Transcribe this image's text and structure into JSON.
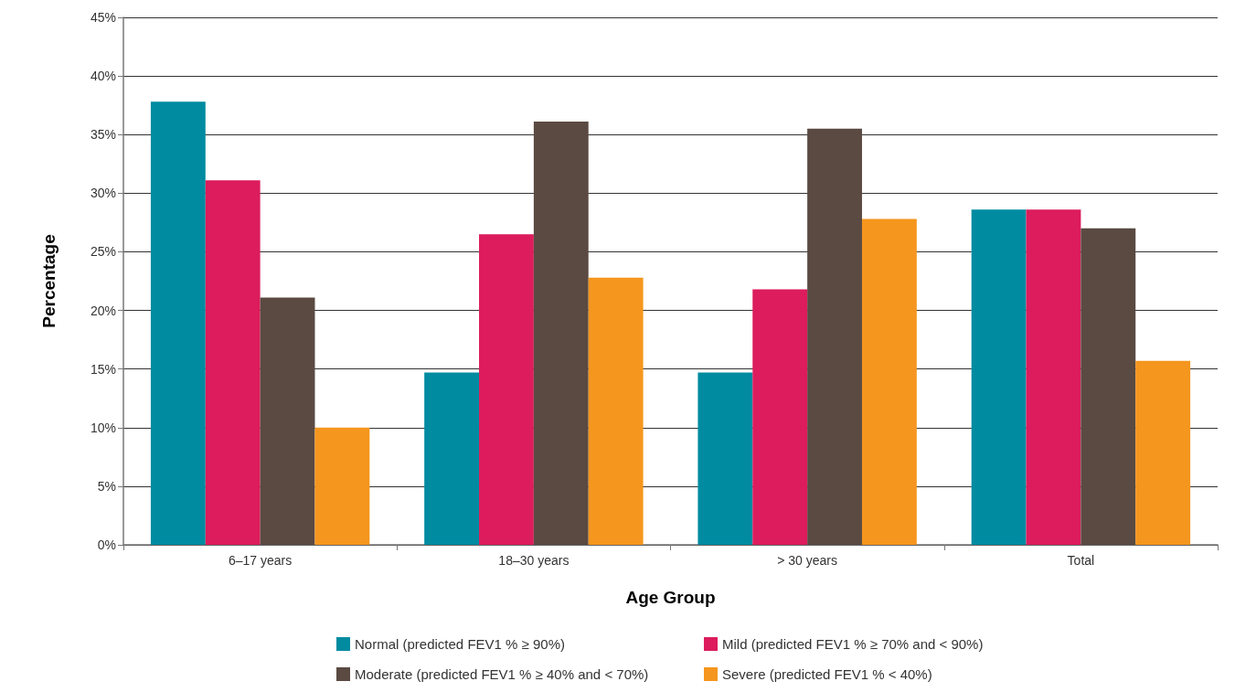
{
  "chart_data": {
    "type": "bar",
    "xlabel": "Age Group",
    "ylabel": "Percentage",
    "categories": [
      "6–17 years",
      "18–30 years",
      "> 30 years",
      "Total"
    ],
    "series": [
      {
        "name": "Normal (predicted FEV1 % ≥ 90%)",
        "color": "#008ba0",
        "values": [
          37.8,
          14.7,
          14.7,
          28.6
        ]
      },
      {
        "name": "Mild (predicted FEV1 % ≥ 70% and < 90%)",
        "color": "#dc1c5c",
        "values": [
          31.1,
          26.5,
          21.8,
          28.6
        ]
      },
      {
        "name": "Moderate (predicted FEV1 % ≥ 40% and < 70%)",
        "color": "#5a4a42",
        "values": [
          21.1,
          36.1,
          35.5,
          27.0
        ]
      },
      {
        "name": "Severe (predicted FEV1 % < 40%)",
        "color": "#f5961e",
        "values": [
          10.0,
          22.8,
          27.8,
          15.7
        ]
      }
    ],
    "ylim": [
      0,
      45
    ],
    "yticks": [
      {
        "value": 0,
        "label": "0%"
      },
      {
        "value": 5,
        "label": "5%"
      },
      {
        "value": 10,
        "label": "10%"
      },
      {
        "value": 15,
        "label": "15%"
      },
      {
        "value": 20,
        "label": "20%"
      },
      {
        "value": 25,
        "label": "25%"
      },
      {
        "value": 30,
        "label": "30%"
      },
      {
        "value": 35,
        "label": "35%"
      },
      {
        "value": 40,
        "label": "40%"
      },
      {
        "value": 45,
        "label": "45%"
      }
    ],
    "grid": "y",
    "legend": "bottom"
  }
}
